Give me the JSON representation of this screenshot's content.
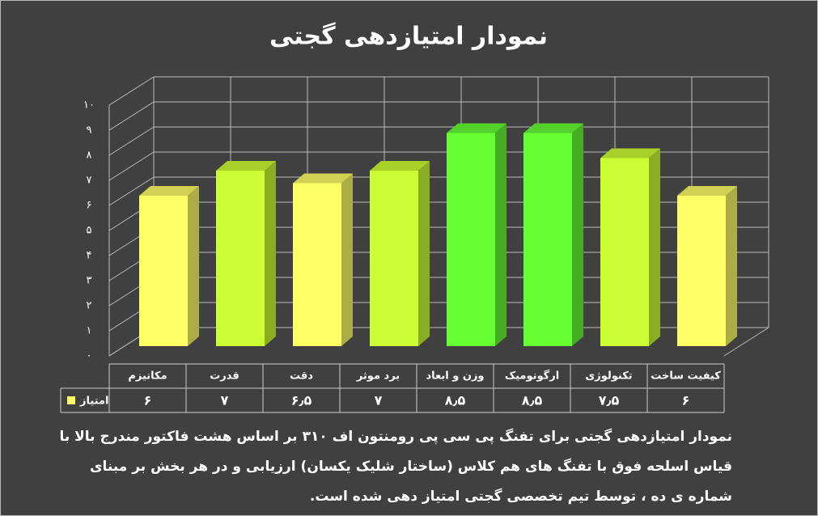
{
  "chart_data": {
    "type": "bar3d",
    "title": "نمودار امتیازدهی گجتی",
    "categories": [
      "مکانیزم",
      "قدرت",
      "دقت",
      "برد موثر",
      "وزن و ابعاد",
      "ارگونومیک",
      "تکنولوژی",
      "کیفیت ساخت"
    ],
    "series": [
      {
        "name": "امتیاز",
        "color": "#ffff66",
        "colors": [
          "#ffff66",
          "#ccff33",
          "#ffff66",
          "#ccff33",
          "#66ff33",
          "#66ff33",
          "#ccff33",
          "#ffff66"
        ],
        "values": [
          6,
          7,
          6.5,
          7,
          8.5,
          8.5,
          7.5,
          6
        ],
        "value_labels": [
          "۶",
          "۷",
          "۶٫۵",
          "۷",
          "۸٫۵",
          "۸٫۵",
          "۷٫۵",
          "۶"
        ]
      }
    ],
    "ylim": [
      0,
      10
    ],
    "yticks": [
      {
        "value": 0,
        "label": "۰"
      },
      {
        "value": 1,
        "label": "۱"
      },
      {
        "value": 2,
        "label": "۲"
      },
      {
        "value": 3,
        "label": "۳"
      },
      {
        "value": 4,
        "label": "۴"
      },
      {
        "value": 5,
        "label": "۵"
      },
      {
        "value": 6,
        "label": "۶"
      },
      {
        "value": 7,
        "label": "۷"
      },
      {
        "value": 8,
        "label": "۸"
      },
      {
        "value": 9,
        "label": "۹"
      },
      {
        "value": 10,
        "label": "۱۰"
      }
    ],
    "grid": true,
    "caption": "نمودار امتیازدهی گجتی برای تفنگ پی سی پی رومنتون اف ۳۱۰ بر اساس هشت فاکتور مندرج بالا با قیاس اسلحه فوق با تفنگ های هم کلاس (ساختار شلیک یکسان) ارزیابی و در هر بخش بر مبنای شماره ی ده ، توسط تیم تخصصی گجتی امتیاز دهی شده است."
  }
}
